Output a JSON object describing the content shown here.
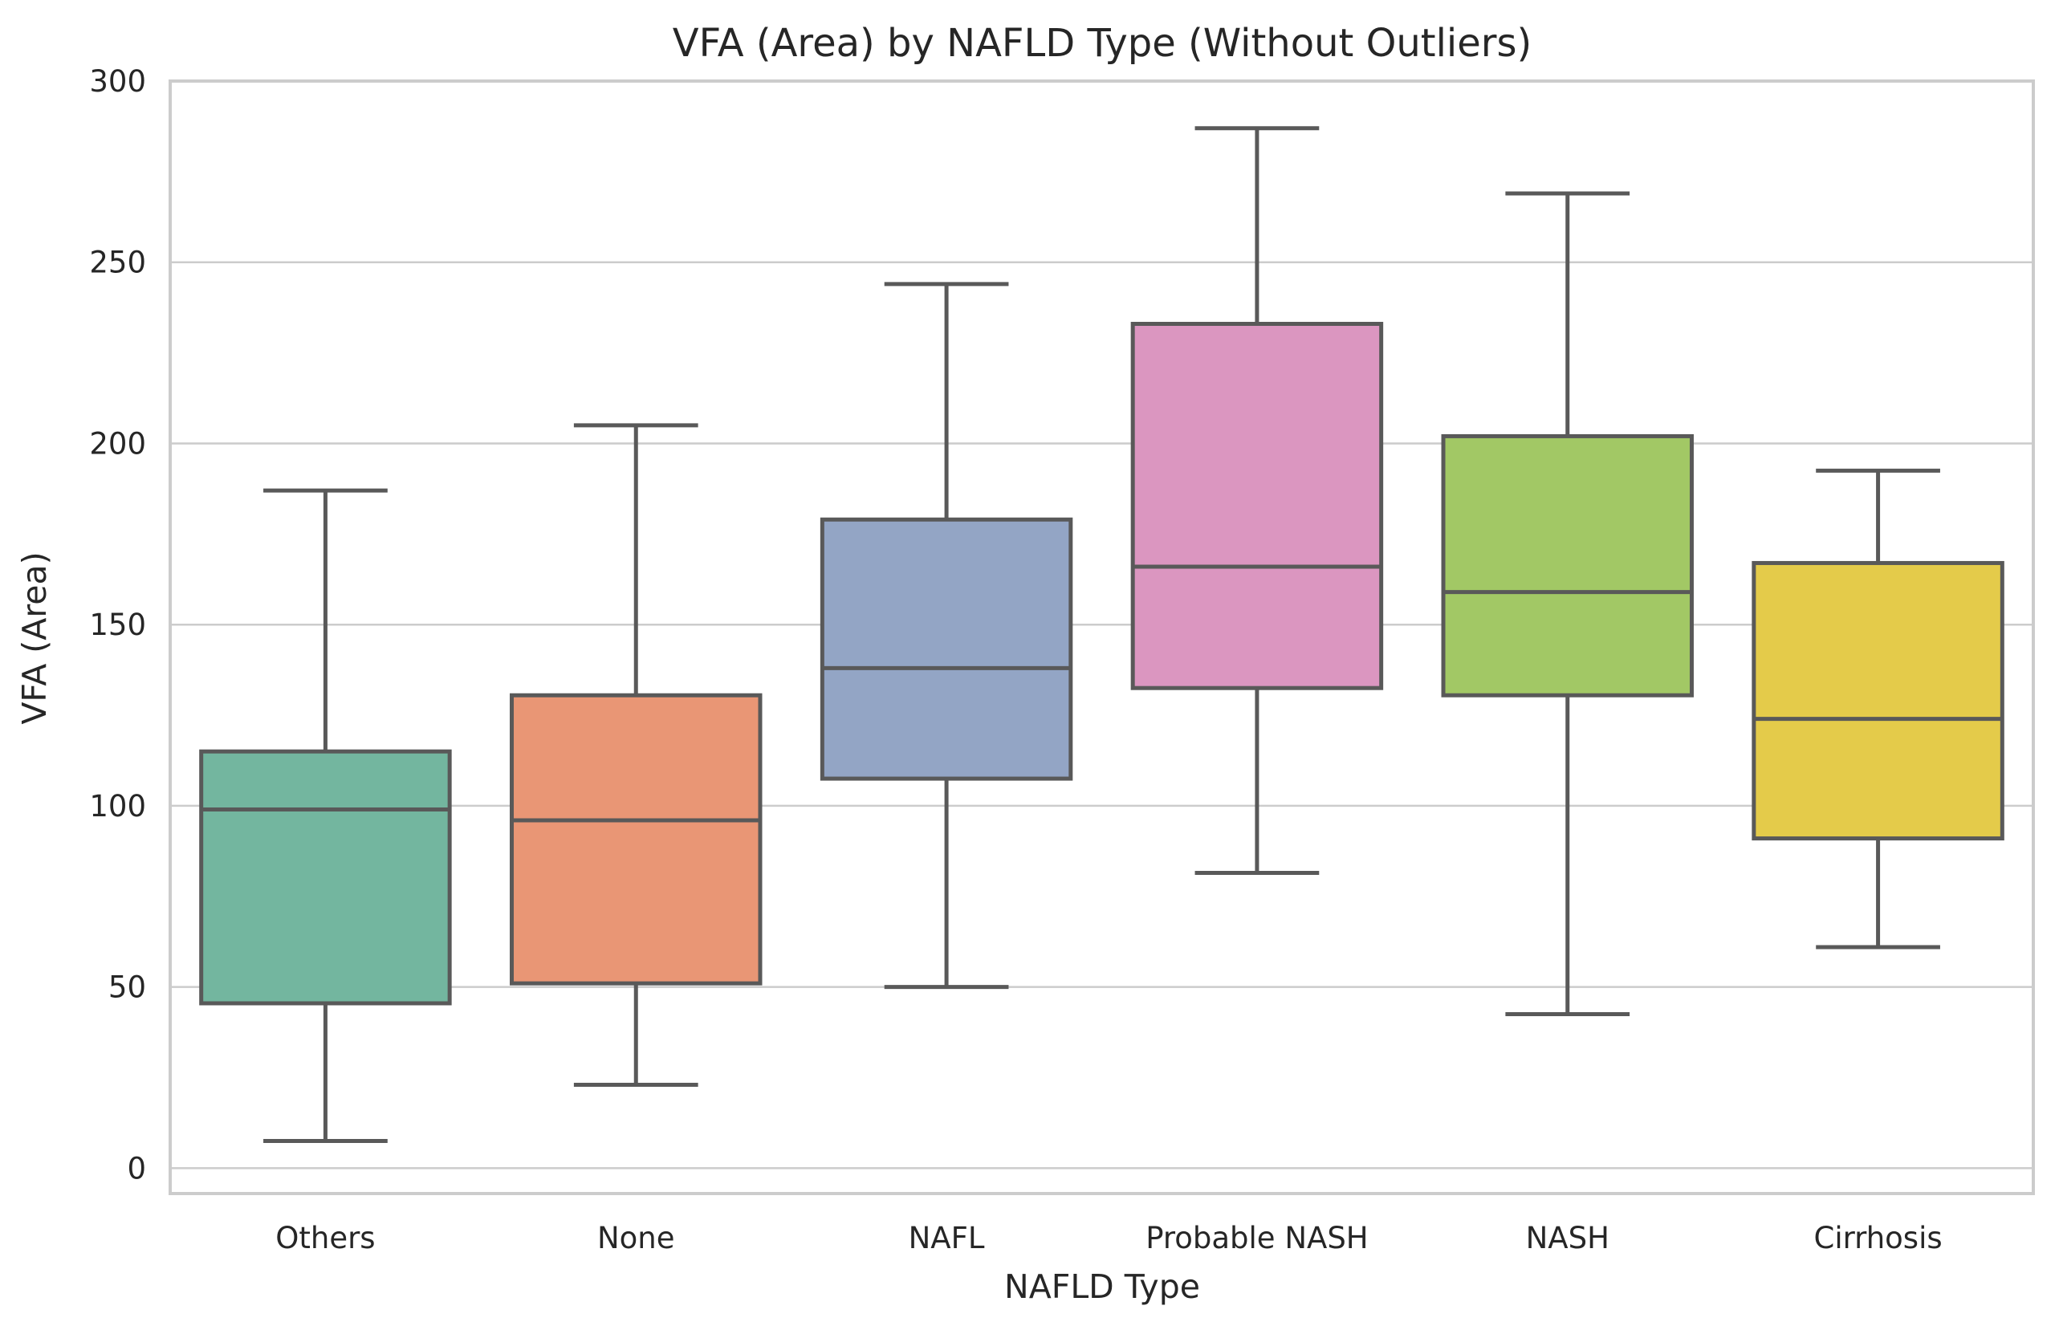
{
  "chart_data": {
    "type": "box",
    "title": "VFA (Area) by NAFLD Type (Without Outliers)",
    "xlabel": "NAFLD Type",
    "ylabel": "VFA (Area)",
    "ylim": [
      -7,
      300
    ],
    "yticks": [
      0,
      50,
      100,
      150,
      200,
      250,
      300
    ],
    "ytick_labels": [
      "0",
      "50",
      "100",
      "150",
      "200",
      "250",
      "300"
    ],
    "grid": "horizontal",
    "categories": [
      "Others",
      "None",
      "NAFL",
      "Probable NASH",
      "NASH",
      "Cirrhosis"
    ],
    "colors": [
      "#73b69f",
      "#e99675",
      "#93a5c5",
      "#db96c0",
      "#a2c865",
      "#e4cb4a"
    ],
    "boxes": [
      {
        "category": "Others",
        "whisker_low": 7.5,
        "q1": 45.5,
        "median": 99,
        "q3": 115,
        "whisker_high": 187
      },
      {
        "category": "None",
        "whisker_low": 23,
        "q1": 51,
        "median": 96,
        "q3": 130.5,
        "whisker_high": 205
      },
      {
        "category": "NAFL",
        "whisker_low": 50,
        "q1": 107.5,
        "median": 138,
        "q3": 179,
        "whisker_high": 244
      },
      {
        "category": "Probable NASH",
        "whisker_low": 81.5,
        "q1": 132.5,
        "median": 166,
        "q3": 233,
        "whisker_high": 287
      },
      {
        "category": "NASH",
        "whisker_low": 42.5,
        "q1": 130.5,
        "median": 159,
        "q3": 202,
        "whisker_high": 269
      },
      {
        "category": "Cirrhosis",
        "whisker_low": 61,
        "q1": 91,
        "median": 124,
        "q3": 167,
        "whisker_high": 192.5
      }
    ]
  }
}
